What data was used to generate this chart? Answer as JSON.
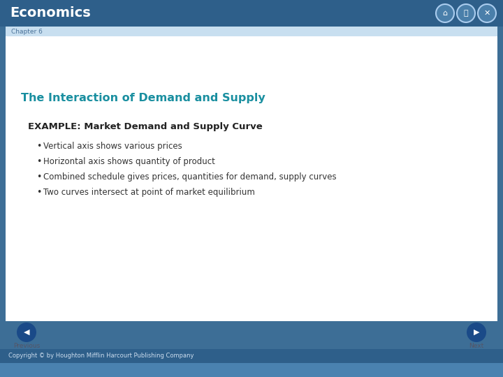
{
  "title": "Economics",
  "chapter_label": "Chapter 6",
  "section_title": "The Interaction of Demand and Supply",
  "example_heading": "EXAMPLE: Market Demand and Supply Curve",
  "bullet_points": [
    "Vertical axis shows various prices",
    "Horizontal axis shows quantity of product",
    "Combined schedule gives prices, quantities for demand, supply curves",
    "Two curves intersect at point of market equilibrium"
  ],
  "footer_text": "Copyright © by Houghton Mifflin Harcourt Publishing Company",
  "prev_label": "Previous",
  "next_label": "Next",
  "bg_outer": "#3d6e96",
  "bg_header": "#2e5f8a",
  "bg_chapter_bar": "#c8dff0",
  "bg_content": "#ffffff",
  "bg_footer_bar": "#2e5f8a",
  "bg_footer_strip": "#4a82b0",
  "title_color": "#ffffff",
  "chapter_color": "#4a7299",
  "section_title_color": "#1a8fa0",
  "example_heading_color": "#222222",
  "bullet_color": "#333333",
  "footer_text_color": "#ccddee",
  "prev_next_color": "#555566",
  "nav_btn_color": "#1a4a88"
}
